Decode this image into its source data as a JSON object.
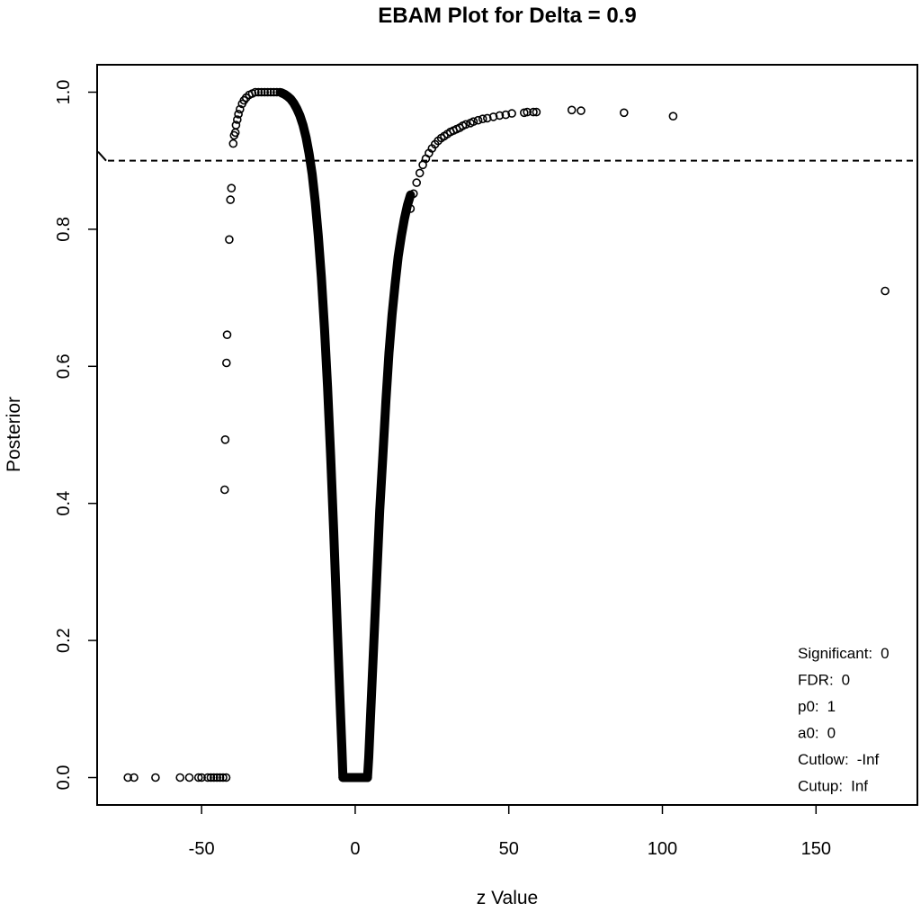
{
  "chart_data": {
    "type": "scatter",
    "title": "EBAM Plot for Delta = 0.9",
    "xlabel": "z Value",
    "ylabel": "Posterior",
    "xlim": [
      -84,
      183
    ],
    "ylim": [
      -0.04,
      1.04
    ],
    "x_ticks": [
      {
        "value": -50,
        "label": "-50"
      },
      {
        "value": 0,
        "label": "0"
      },
      {
        "value": 50,
        "label": "50"
      },
      {
        "value": 100,
        "label": "100"
      },
      {
        "value": 150,
        "label": "150"
      }
    ],
    "y_ticks": [
      {
        "value": 0.0,
        "label": "0.0"
      },
      {
        "value": 0.2,
        "label": "0.2"
      },
      {
        "value": 0.4,
        "label": "0.4"
      },
      {
        "value": 0.6,
        "label": "0.6"
      },
      {
        "value": 0.8,
        "label": "0.8"
      },
      {
        "value": 1.0,
        "label": "1.0"
      }
    ],
    "threshold": 0.9,
    "grid": false,
    "legend_position": "bottom-right",
    "stats": [
      {
        "label": "Significant:",
        "value": "0"
      },
      {
        "label": "FDR:",
        "value": "0"
      },
      {
        "label": "p0:",
        "value": "1"
      },
      {
        "label": "a0:",
        "value": "0"
      },
      {
        "label": "Cutlow:",
        "value": "-Inf"
      },
      {
        "label": "Cutup:",
        "value": "Inf"
      }
    ],
    "points": [
      [
        -74,
        0.0
      ],
      [
        -72,
        0.0
      ],
      [
        -65,
        0.0
      ],
      [
        -57,
        0.0
      ],
      [
        -54,
        0.0
      ],
      [
        -51,
        0.0
      ],
      [
        -50,
        0.0
      ],
      [
        -48,
        0.0
      ],
      [
        -47,
        0.0
      ],
      [
        -46,
        0.0
      ],
      [
        -45,
        0.0
      ],
      [
        -44,
        0.0
      ],
      [
        -43,
        0.0
      ],
      [
        -42,
        0.0
      ],
      [
        -42.5,
        0.42
      ],
      [
        -42.3,
        0.493
      ],
      [
        -41.9,
        0.605
      ],
      [
        -41.7,
        0.646
      ],
      [
        -41.0,
        0.785
      ],
      [
        -40.6,
        0.843
      ],
      [
        -40.3,
        0.86
      ],
      [
        -39.7,
        0.925
      ],
      [
        -39.4,
        0.937
      ],
      [
        -39.0,
        0.941
      ],
      [
        -38.8,
        0.952
      ],
      [
        -38.4,
        0.96
      ],
      [
        -38.0,
        0.968
      ],
      [
        -37.5,
        0.975
      ],
      [
        -36.8,
        0.983
      ],
      [
        -36.2,
        0.988
      ],
      [
        -35.5,
        0.992
      ],
      [
        -34.5,
        0.996
      ],
      [
        -33.5,
        0.998
      ],
      [
        -32.5,
        1.0
      ],
      [
        -31.5,
        1.0
      ],
      [
        -30.5,
        1.0
      ],
      [
        -29.5,
        1.0
      ],
      [
        -28.5,
        1.0
      ],
      [
        -27.5,
        1.0
      ],
      [
        -26.5,
        1.0
      ],
      [
        -25.5,
        1.0
      ],
      [
        -24.5,
        1.0
      ],
      [
        18.0,
        0.83
      ],
      [
        19.0,
        0.852
      ],
      [
        20.0,
        0.868
      ],
      [
        21.0,
        0.882
      ],
      [
        22.0,
        0.894
      ],
      [
        23.0,
        0.903
      ],
      [
        24.0,
        0.911
      ],
      [
        25.0,
        0.918
      ],
      [
        26.0,
        0.924
      ],
      [
        27.0,
        0.929
      ],
      [
        28.0,
        0.933
      ],
      [
        29.0,
        0.936
      ],
      [
        30.0,
        0.939
      ],
      [
        31.0,
        0.942
      ],
      [
        32.0,
        0.944
      ],
      [
        33.0,
        0.946
      ],
      [
        34.0,
        0.948
      ],
      [
        35.0,
        0.951
      ],
      [
        36.0,
        0.953
      ],
      [
        37.5,
        0.955
      ],
      [
        38.5,
        0.957
      ],
      [
        40.0,
        0.959
      ],
      [
        41.5,
        0.961
      ],
      [
        43.0,
        0.962
      ],
      [
        45.0,
        0.964
      ],
      [
        47.0,
        0.966
      ],
      [
        49.0,
        0.967
      ],
      [
        51.0,
        0.969
      ],
      [
        55.0,
        0.97
      ],
      [
        56.0,
        0.971
      ],
      [
        58.0,
        0.971
      ],
      [
        59.0,
        0.971
      ],
      [
        70.5,
        0.974
      ],
      [
        73.5,
        0.973
      ],
      [
        87.5,
        0.97
      ],
      [
        103.5,
        0.965
      ],
      [
        172.5,
        0.71
      ]
    ],
    "curve_left": [
      [
        -24.0,
        0.999
      ],
      [
        -23.0,
        0.997
      ],
      [
        -22.0,
        0.994
      ],
      [
        -21.0,
        0.99
      ],
      [
        -20.0,
        0.984
      ],
      [
        -19.0,
        0.976
      ],
      [
        -18.0,
        0.966
      ],
      [
        -17.0,
        0.952
      ],
      [
        -16.0,
        0.934
      ],
      [
        -15.0,
        0.91
      ],
      [
        -14.0,
        0.88
      ],
      [
        -13.0,
        0.84
      ],
      [
        -12.0,
        0.79
      ],
      [
        -11.0,
        0.73
      ],
      [
        -10.0,
        0.655
      ],
      [
        -9.0,
        0.57
      ],
      [
        -8.0,
        0.47
      ],
      [
        -7.0,
        0.36
      ],
      [
        -6.0,
        0.24
      ],
      [
        -5.0,
        0.12
      ],
      [
        -4.3,
        0.04
      ],
      [
        -4.0,
        0.0
      ]
    ],
    "curve_flat": [
      [
        -4.0,
        0.0
      ],
      [
        4.0,
        0.0
      ]
    ],
    "curve_right": [
      [
        4.0,
        0.0
      ],
      [
        4.4,
        0.03
      ],
      [
        5.0,
        0.09
      ],
      [
        6.0,
        0.19
      ],
      [
        7.0,
        0.29
      ],
      [
        8.0,
        0.39
      ],
      [
        9.0,
        0.47
      ],
      [
        10.0,
        0.55
      ],
      [
        11.0,
        0.62
      ],
      [
        12.0,
        0.675
      ],
      [
        13.0,
        0.72
      ],
      [
        14.0,
        0.76
      ],
      [
        15.0,
        0.79
      ],
      [
        16.0,
        0.815
      ],
      [
        17.0,
        0.835
      ],
      [
        18.0,
        0.85
      ]
    ]
  }
}
